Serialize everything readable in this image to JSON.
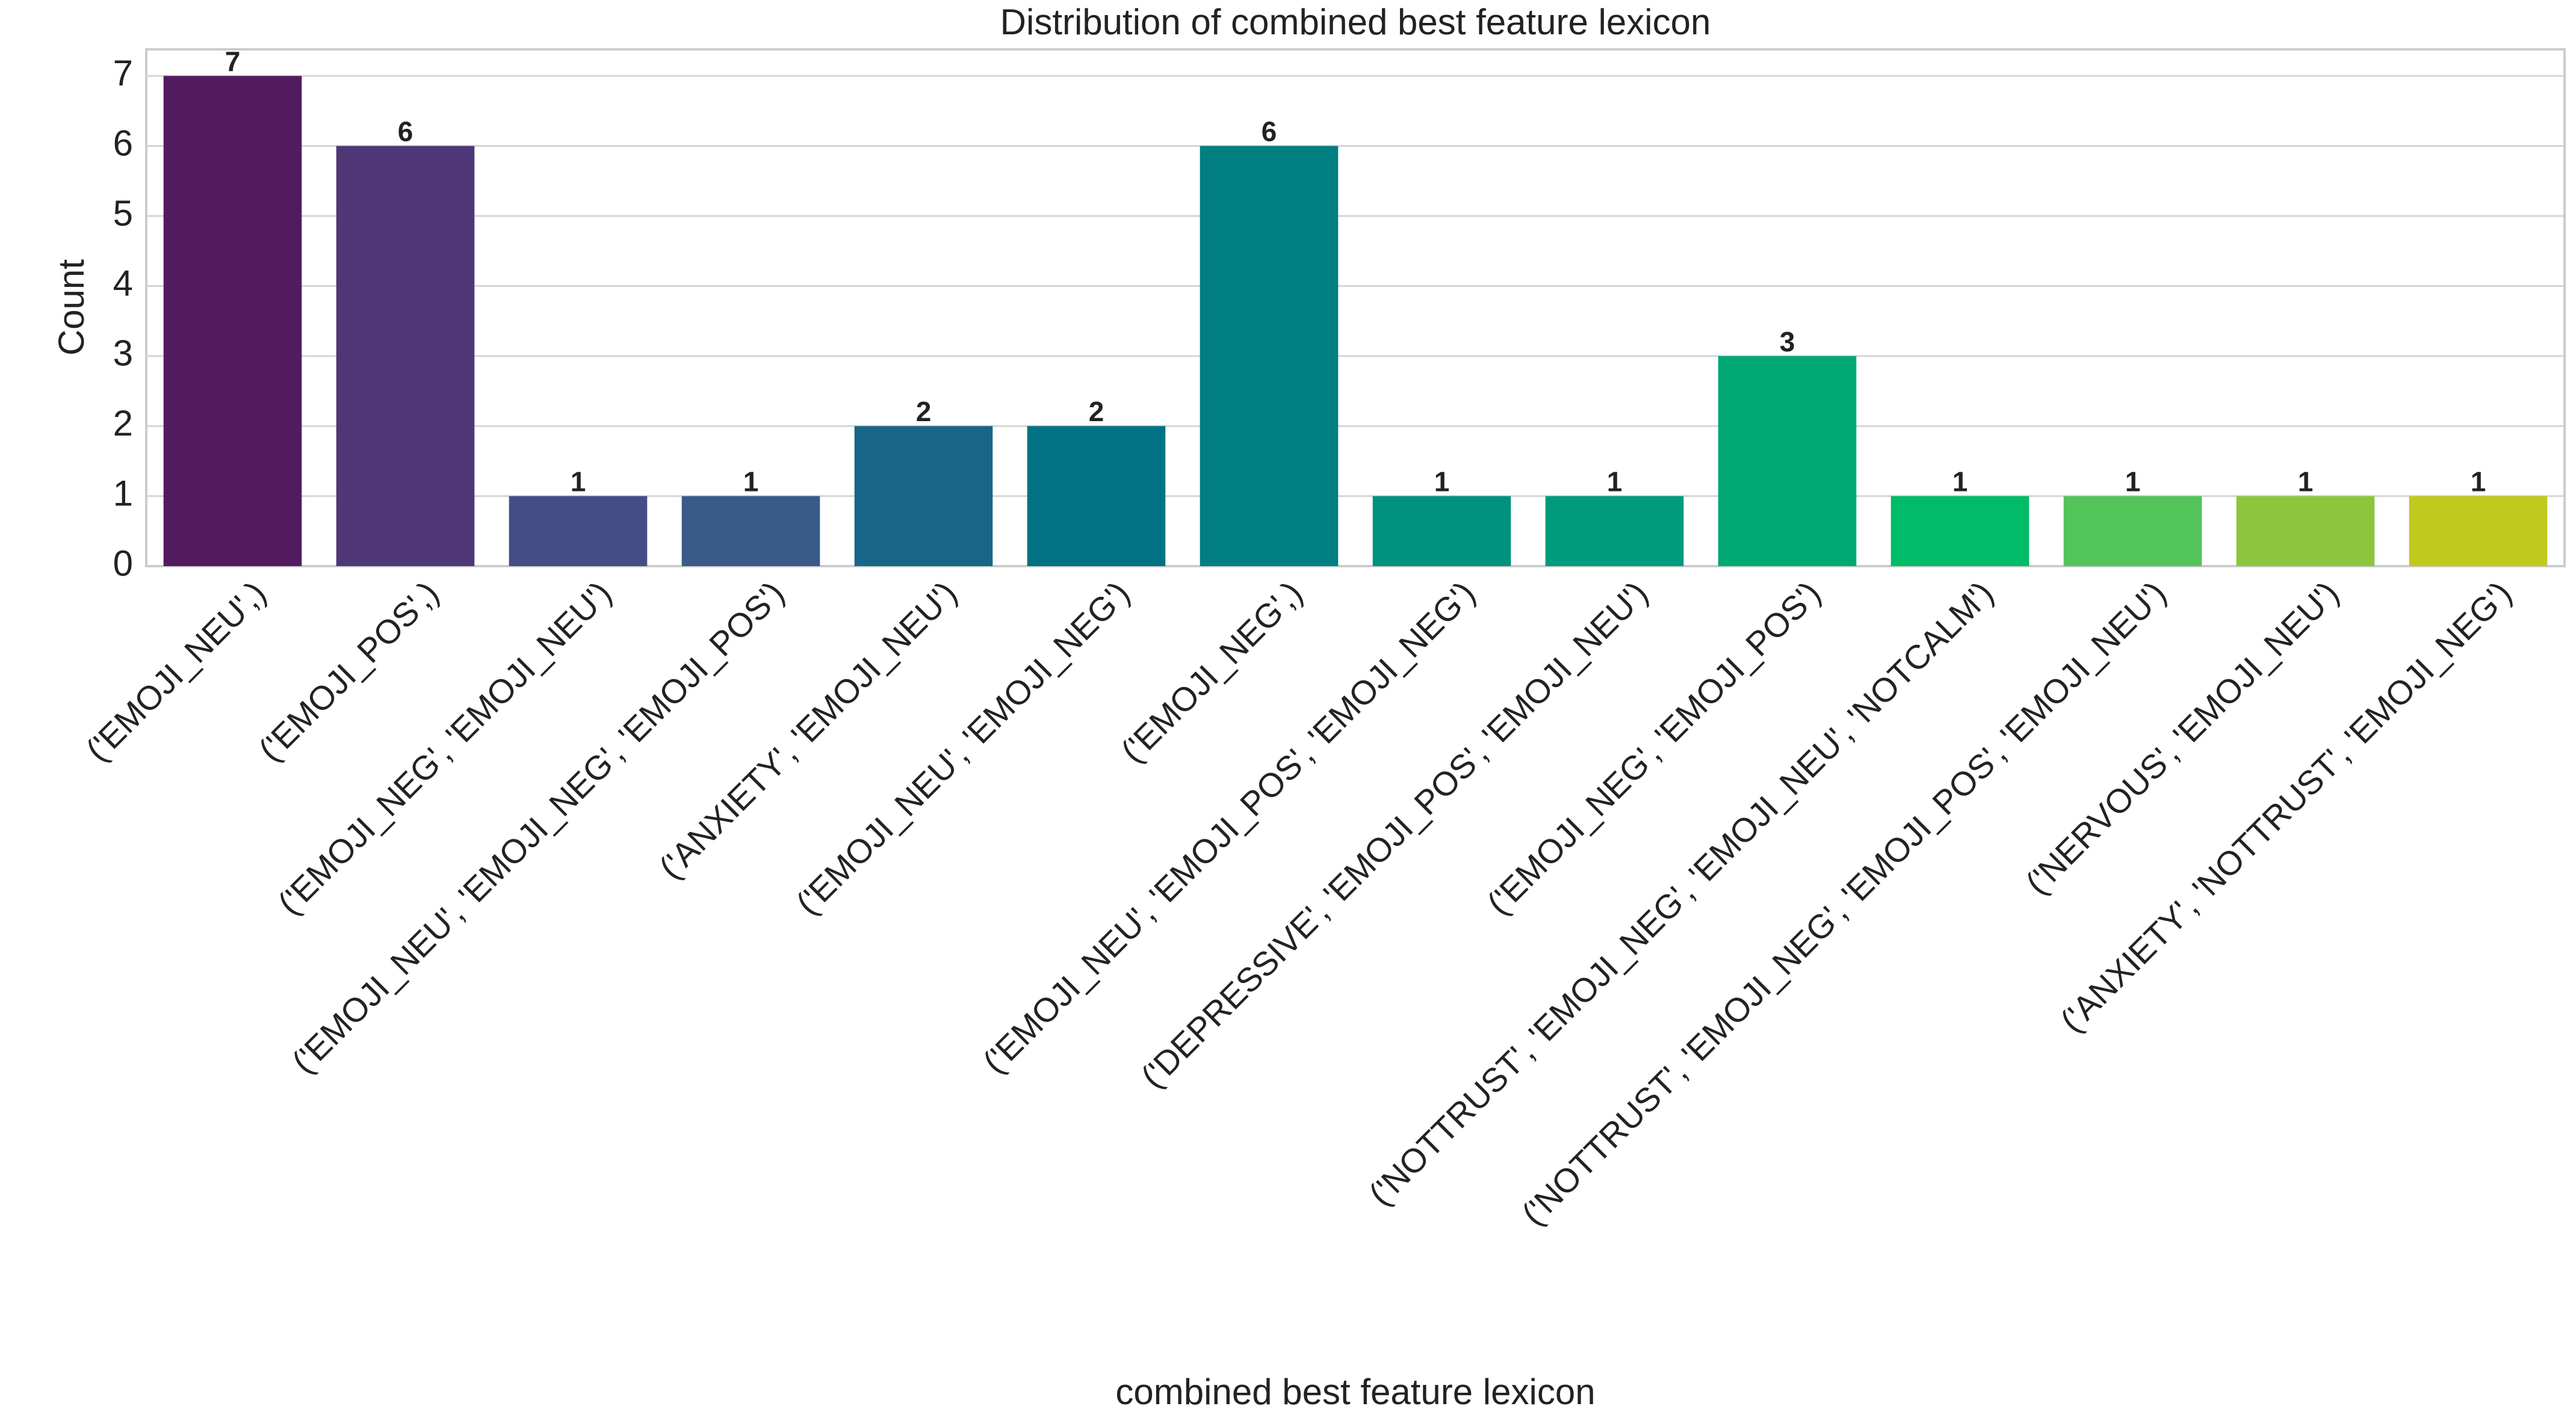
{
  "chart_data": {
    "type": "bar",
    "title": "Distribution of combined best feature lexicon",
    "x_label": "combined best feature lexicon",
    "y_label": "Count",
    "categories": [
      "('EMOJI_NEU',)",
      "('EMOJI_POS',)",
      "('EMOJI_NEG', 'EMOJI_NEU')",
      "('EMOJI_NEU', 'EMOJI_NEG', 'EMOJI_POS')",
      "('ANXIETY', 'EMOJI_NEU')",
      "('EMOJI_NEU', 'EMOJI_NEG')",
      "('EMOJI_NEG',)",
      "('EMOJI_NEU', 'EMOJI_POS', 'EMOJI_NEG')",
      "('DEPRESSIVE', 'EMOJI_POS', 'EMOJI_NEU')",
      "('EMOJI_NEG', 'EMOJI_POS')",
      "('NOTTRUST', 'EMOJI_NEG', 'EMOJI_NEU', 'NOTCALM')",
      "('NOTTRUST', 'EMOJI_NEG', 'EMOJI_POS', 'EMOJI_NEU')",
      "('NERVOUS', 'EMOJI_NEU')",
      "('ANXIETY', 'NOTTRUST', 'EMOJI_NEG')"
    ],
    "values": [
      7,
      6,
      1,
      1,
      2,
      2,
      6,
      1,
      1,
      3,
      1,
      1,
      1,
      1
    ],
    "colors": [
      "#521b5f",
      "#4f3676",
      "#444d86",
      "#385b87",
      "#186687",
      "#007283",
      "#007e80",
      "#00917f",
      "#009a7e",
      "#00a874",
      "#00bb68",
      "#52c45a",
      "#8dc63c",
      "#c0c91e"
    ],
    "ylim": [
      0,
      7.38
    ],
    "yticks": [
      0,
      1,
      2,
      3,
      4,
      5,
      6,
      7
    ],
    "grid": true
  }
}
